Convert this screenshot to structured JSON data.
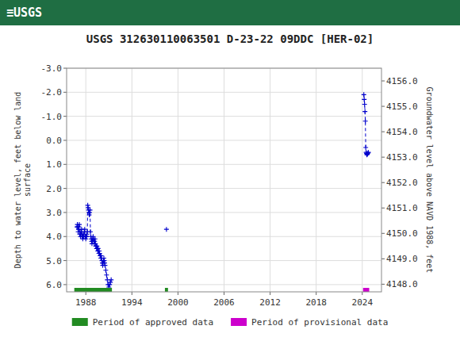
{
  "chart_data": {
    "type": "line",
    "title": "USGS 312630110063501 D-23-22 09DDC [HER-02]",
    "annotations": [
      "≡USGS"
    ],
    "y_label": "Depth to water level, feet below land\nsurface",
    "y2_label": "Groundwater level above NAVD 1988, feet",
    "xlim": [
      1985.5,
      2026.5
    ],
    "xticks": [
      1988,
      1994,
      2000,
      2006,
      2012,
      2018,
      2024
    ],
    "ylim": [
      6.3,
      -3.0
    ],
    "yticks": [
      {
        "value": -3.0,
        "label": "-3.0"
      },
      {
        "value": -2.0,
        "label": "-2.0"
      },
      {
        "value": -1.0,
        "label": "-1.0"
      },
      {
        "value": 0.0,
        "label": "0.0"
      },
      {
        "value": 1.0,
        "label": "1.0"
      },
      {
        "value": 2.0,
        "label": "2.0"
      },
      {
        "value": 3.0,
        "label": "3.0"
      },
      {
        "value": 4.0,
        "label": "4.0"
      },
      {
        "value": 5.0,
        "label": "5.0"
      },
      {
        "value": 6.0,
        "label": "6.0"
      }
    ],
    "y2lim": [
      4147.7,
      4156.5
    ],
    "y2ticks": [
      {
        "value": 4156.0,
        "label": "4156.0"
      },
      {
        "value": 4155.0,
        "label": "4155.0"
      },
      {
        "value": 4154.0,
        "label": "4154.0"
      },
      {
        "value": 4153.0,
        "label": "4153.0"
      },
      {
        "value": 4152.0,
        "label": "4152.0"
      },
      {
        "value": 4151.0,
        "label": "4151.0"
      },
      {
        "value": 4150.0,
        "label": "4150.0"
      },
      {
        "value": 4149.0,
        "label": "4149.0"
      },
      {
        "value": 4148.0,
        "label": "4148.0"
      }
    ],
    "grid": true,
    "legend": "bottom",
    "series": [
      {
        "type": "line",
        "line_style": "dashed",
        "marker": "plus",
        "color": "#0000cc",
        "x": [
          1986.85,
          1986.9,
          1986.95,
          1987.0,
          1987.05,
          1987.1,
          1987.15,
          1987.2,
          1987.25,
          1987.3,
          1987.35,
          1987.4,
          1987.45,
          1987.5,
          1987.55,
          1987.6,
          1987.65,
          1987.7,
          1987.75,
          1987.8,
          1987.85,
          1987.9,
          1987.95,
          1988.0,
          1988.05,
          1988.1,
          1988.15,
          1988.2,
          1988.25,
          1988.3,
          1988.35,
          1988.4,
          1988.45,
          1988.5,
          1988.55,
          1988.6,
          1988.65,
          1988.7,
          1988.75,
          1988.8,
          1988.85,
          1988.9,
          1988.95,
          1989.0,
          1989.05,
          1989.1,
          1989.15,
          1989.2,
          1989.25,
          1989.3,
          1989.35,
          1989.4,
          1989.45,
          1989.5,
          1989.55,
          1989.6,
          1989.65,
          1989.7,
          1989.75,
          1989.8,
          1989.85,
          1989.9,
          1989.95,
          1990.0,
          1990.05,
          1990.1,
          1990.15,
          1990.2,
          1990.25,
          1990.3,
          1990.35,
          1990.4,
          1990.45,
          1990.5,
          1990.6,
          1990.7,
          1990.8,
          1990.9,
          1991.0,
          1991.1,
          1991.2,
          1991.3
        ],
        "values": [
          3.6,
          3.5,
          3.6,
          3.8,
          3.7,
          3.6,
          3.5,
          3.9,
          3.8,
          4.0,
          3.9,
          3.8,
          3.7,
          4.0,
          3.9,
          4.1,
          4.0,
          4.0,
          3.9,
          3.8,
          3.7,
          4.0,
          4.0,
          4.1,
          4.0,
          4.0,
          3.9,
          3.8,
          2.7,
          2.8,
          2.9,
          3.0,
          3.1,
          3.0,
          2.9,
          3.8,
          4.0,
          4.1,
          4.2,
          4.3,
          4.2,
          4.1,
          4.0,
          4.1,
          4.2,
          4.3,
          4.2,
          4.1,
          4.3,
          4.4,
          4.4,
          4.5,
          4.4,
          4.5,
          4.6,
          4.5,
          4.6,
          4.7,
          4.6,
          4.7,
          4.8,
          4.8,
          4.9,
          4.8,
          4.9,
          5.0,
          5.1,
          5.2,
          5.1,
          5.0,
          4.9,
          5.0,
          5.1,
          5.2,
          5.4,
          5.6,
          5.8,
          6.0,
          6.1,
          6.0,
          5.9,
          5.8
        ]
      },
      {
        "type": "scatter",
        "marker": "plus",
        "color": "#0000cc",
        "x": [
          1998.5
        ],
        "values": [
          3.7
        ]
      },
      {
        "type": "line",
        "line_style": "dashed",
        "marker": "plus",
        "color": "#0000cc",
        "x": [
          2024.2,
          2024.25,
          2024.3,
          2024.35,
          2024.4,
          2024.45,
          2024.5,
          2024.55,
          2024.6,
          2024.65,
          2024.7,
          2024.75,
          2024.8
        ],
        "values": [
          -1.9,
          -1.7,
          -1.5,
          -1.2,
          -0.8,
          0.3,
          0.5,
          0.55,
          0.6,
          0.58,
          0.55,
          0.52,
          0.5
        ]
      }
    ],
    "periods": [
      {
        "name": "Period of approved data",
        "color": "#228B22",
        "ranges": [
          [
            1986.5,
            1991.4
          ],
          [
            1998.3,
            1998.7
          ]
        ]
      },
      {
        "name": "Period of provisional data",
        "color": "#cc00cc",
        "ranges": [
          [
            2024.1,
            2024.9
          ]
        ]
      }
    ]
  }
}
